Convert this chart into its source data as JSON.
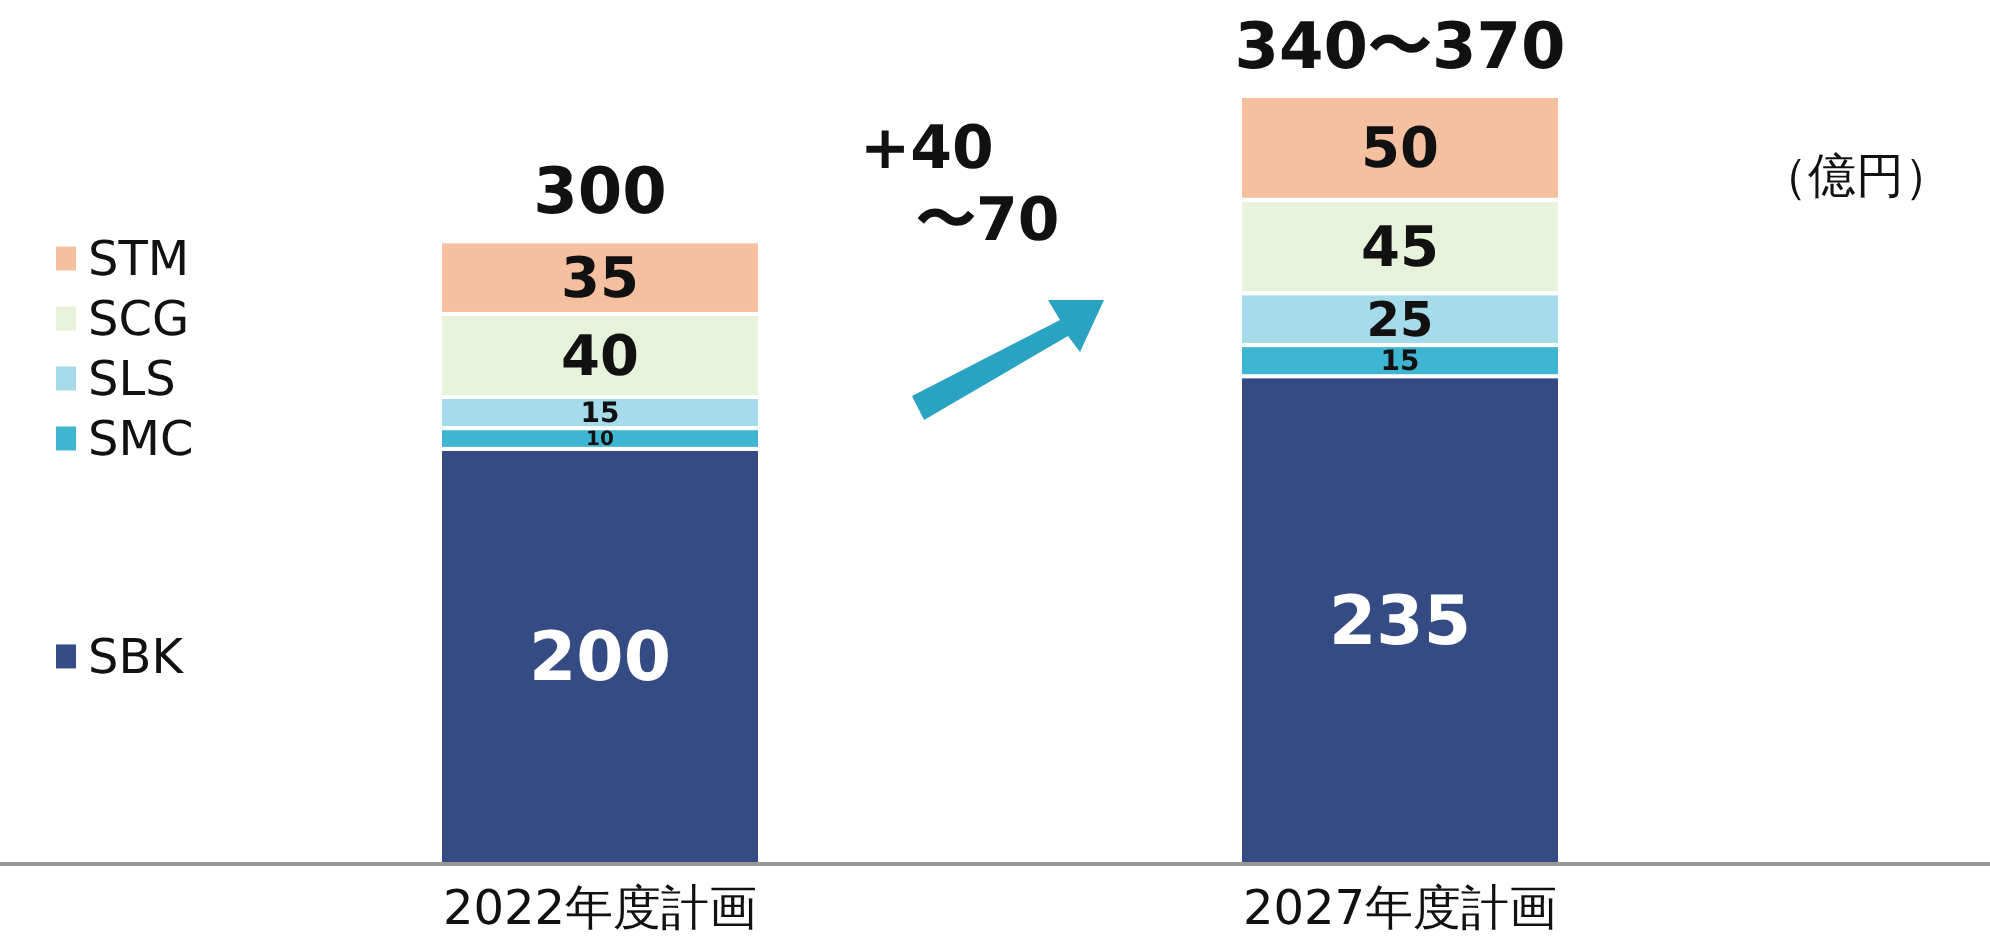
{
  "chart_data": {
    "type": "bar",
    "stacked": true,
    "data_labels": true,
    "legend": "left",
    "categories": [
      "2022年度計画",
      "2027年度計画"
    ],
    "series": [
      {
        "name": "SBK",
        "color": "#344c83",
        "values": [
          200,
          235
        ]
      },
      {
        "name": "SMC",
        "color": "#3fb6d1",
        "values": [
          10,
          15
        ]
      },
      {
        "name": "SLS",
        "color": "#a5dbea",
        "values": [
          15,
          25
        ]
      },
      {
        "name": "SCG",
        "color": "#e6f2d9",
        "values": [
          40,
          45
        ]
      },
      {
        "name": "STM",
        "color": "#f5c0a0",
        "values": [
          35,
          50
        ]
      }
    ],
    "totals": [
      "300",
      "340〜370"
    ],
    "annotations": [
      "+40\n〜70",
      "（億円）"
    ]
  }
}
